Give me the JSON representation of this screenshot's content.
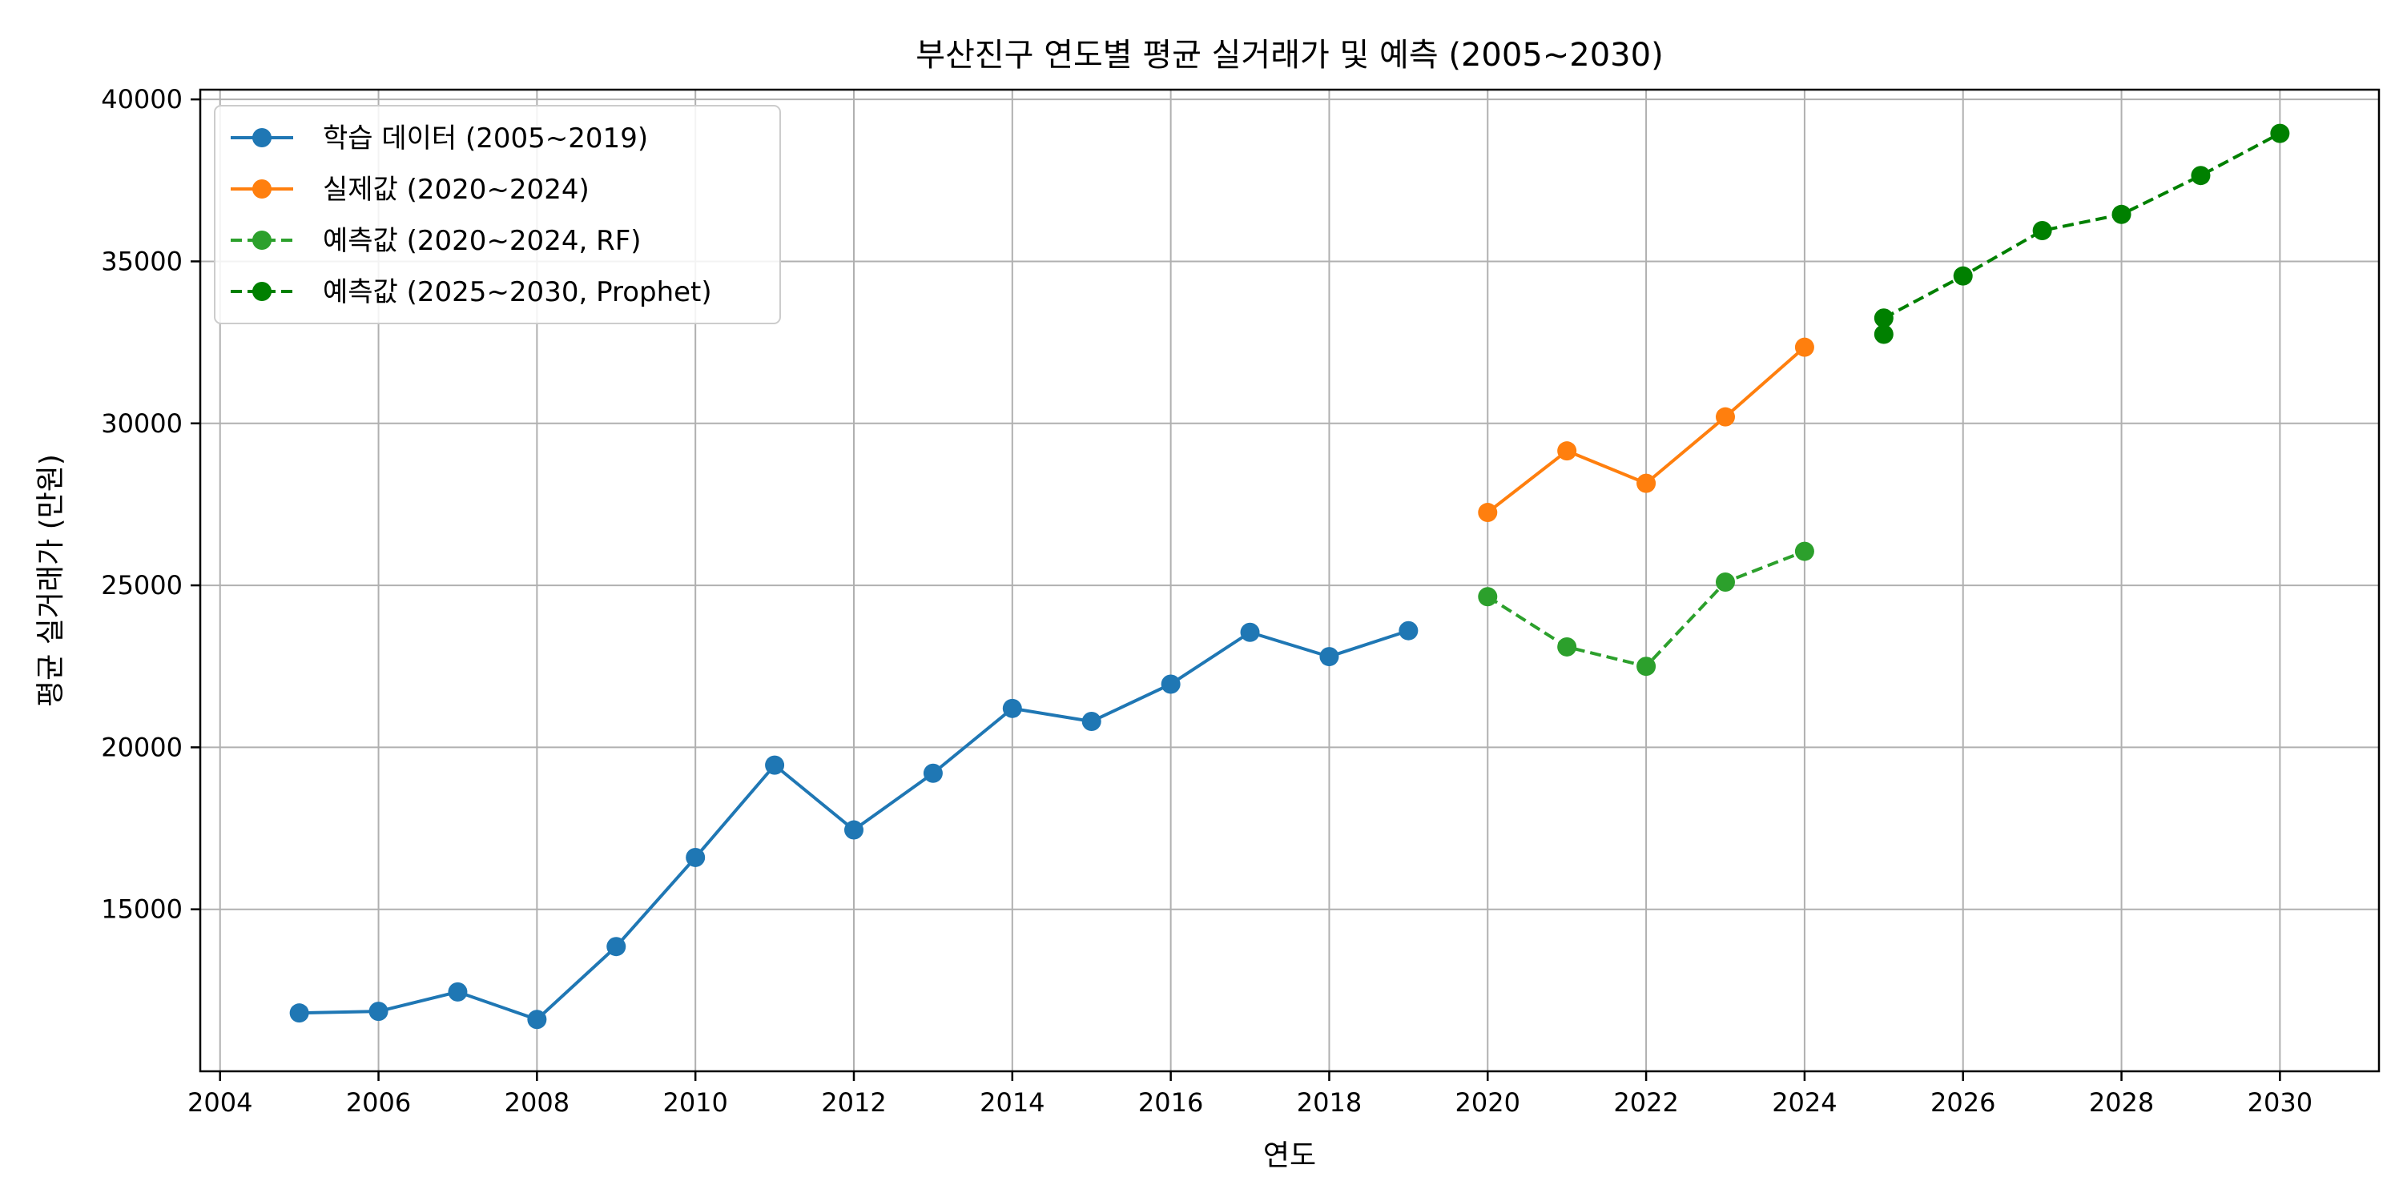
{
  "chart_data": {
    "type": "line",
    "title": "부산진구 연도별 평균 실거래가 및 예측 (2005~2030)",
    "xlabel": "연도",
    "ylabel": "평균 실거래가 (만원)",
    "xlim": [
      2003.75,
      2031.25
    ],
    "ylim": [
      10000,
      40300
    ],
    "xticks": [
      2004,
      2006,
      2008,
      2010,
      2012,
      2014,
      2016,
      2018,
      2020,
      2022,
      2024,
      2026,
      2028,
      2030
    ],
    "yticks": [
      15000,
      20000,
      25000,
      30000,
      35000,
      40000
    ],
    "grid": true,
    "legend_position": "upper-left",
    "series": [
      {
        "name": "학습 데이터 (2005~2019)",
        "color": "#1f77b4",
        "dashed": false,
        "x": [
          2005,
          2006,
          2007,
          2008,
          2009,
          2010,
          2011,
          2012,
          2013,
          2014,
          2015,
          2016,
          2017,
          2018,
          2019
        ],
        "y": [
          11800,
          11850,
          12450,
          11600,
          13850,
          16600,
          19450,
          17450,
          19200,
          21200,
          20800,
          21950,
          23550,
          22800,
          23600
        ]
      },
      {
        "name": "실제값 (2020~2024)",
        "color": "#ff7f0e",
        "dashed": false,
        "x": [
          2020,
          2021,
          2022,
          2023,
          2024
        ],
        "y": [
          27250,
          29150,
          28150,
          30200,
          32350
        ]
      },
      {
        "name": "예측값 (2020~2024, RF)",
        "color": "#2ca02c",
        "dashed": true,
        "x": [
          2020,
          2021,
          2022,
          2023,
          2024
        ],
        "y": [
          24650,
          23100,
          22500,
          25100,
          26050
        ]
      },
      {
        "name": "예측값 (2025~2030, Prophet)",
        "color": "#008000",
        "dashed": true,
        "x": [
          2025,
          2026,
          2027,
          2028,
          2029,
          2030
        ],
        "y": [
          33250,
          34550,
          35950,
          36450,
          37650,
          38950
        ]
      }
    ],
    "extra_points": [
      {
        "color": "#008000",
        "x": 2025,
        "y": 32750
      }
    ]
  }
}
